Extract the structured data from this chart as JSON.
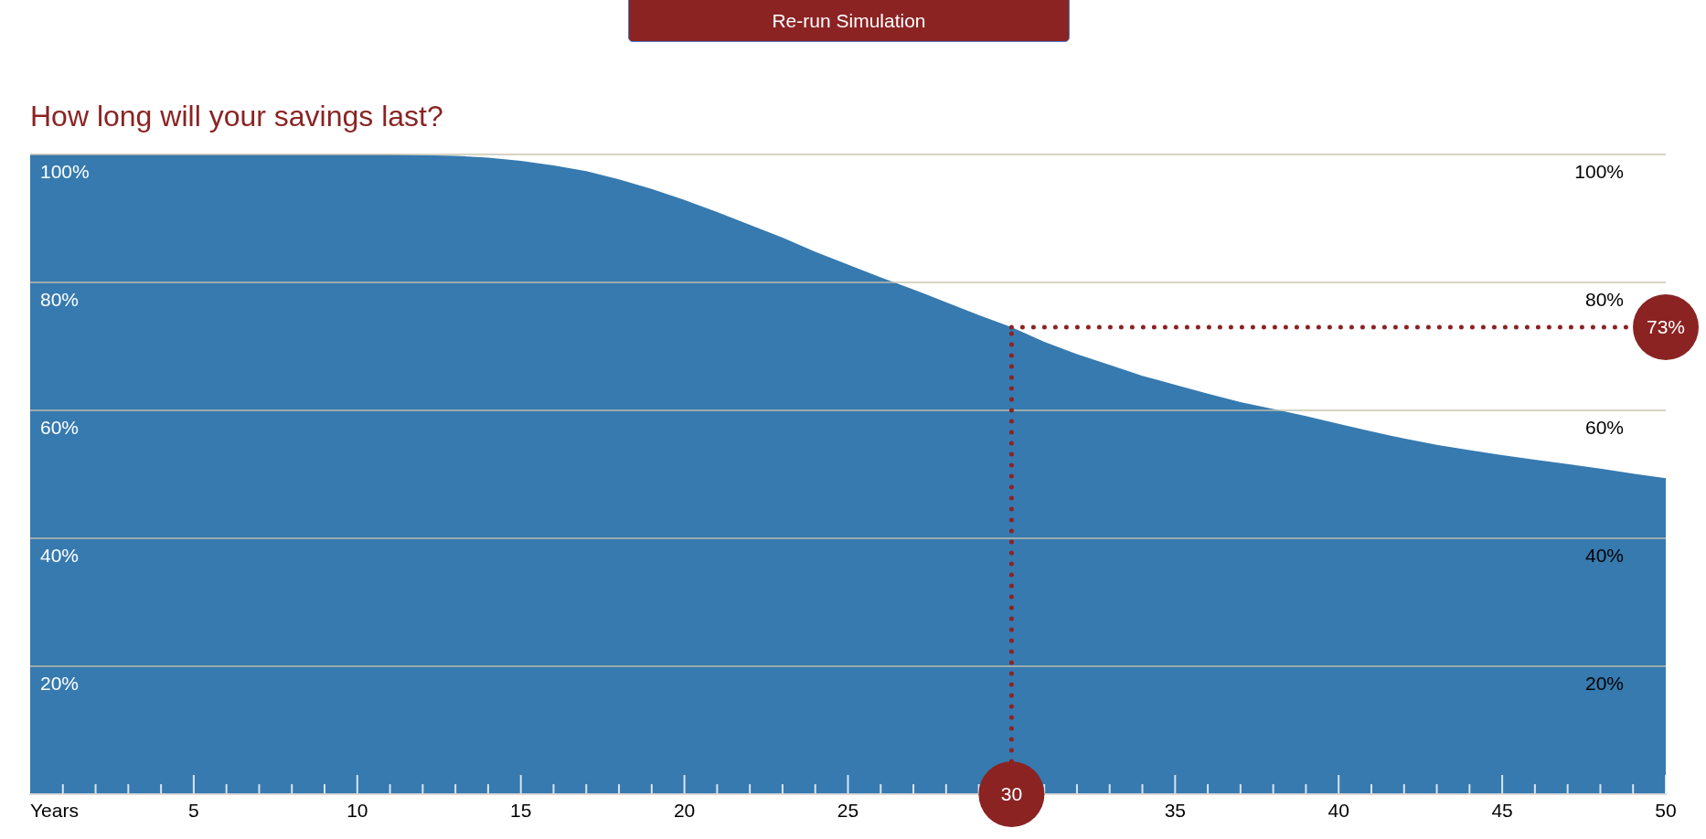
{
  "chart_data": {
    "type": "area",
    "title": "How long will your savings last?",
    "xlabel": "Years",
    "annotations": [
      "Re-run Simulation"
    ],
    "x": [
      0,
      11,
      12,
      13,
      14,
      15,
      16,
      17,
      18,
      19,
      20,
      21,
      22,
      23,
      24,
      25,
      26,
      27,
      28,
      29,
      30,
      31,
      32,
      33,
      34,
      35,
      36,
      37,
      38,
      39,
      40,
      41,
      42,
      43,
      44,
      45,
      46,
      47,
      48,
      49,
      50
    ],
    "series": [
      {
        "color": "#367aaf",
        "values": [
          100,
          100,
          99.9,
          99.8,
          99.5,
          99.0,
          98.3,
          97.4,
          96.1,
          94.6,
          92.9,
          91.0,
          89.0,
          87.0,
          84.8,
          82.8,
          80.8,
          78.9,
          76.9,
          74.9,
          73.0,
          70.7,
          68.8,
          67.1,
          65.4,
          64.0,
          62.6,
          61.3,
          60.2,
          59.1,
          57.9,
          56.7,
          55.6,
          54.6,
          53.8,
          53.0,
          52.3,
          51.6,
          50.9,
          50.1,
          49.4
        ]
      }
    ],
    "xlim": [
      0,
      50
    ],
    "xticks": [
      {
        "value": 1,
        "label": null
      },
      {
        "value": 2,
        "label": null
      },
      {
        "value": 3,
        "label": null
      },
      {
        "value": 4,
        "label": null
      },
      5,
      {
        "value": 6,
        "label": null
      },
      {
        "value": 7,
        "label": null
      },
      {
        "value": 8,
        "label": null
      },
      {
        "value": 9,
        "label": null
      },
      10,
      {
        "value": 11,
        "label": null
      },
      {
        "value": 12,
        "label": null
      },
      {
        "value": 13,
        "label": null
      },
      {
        "value": 14,
        "label": null
      },
      15,
      {
        "value": 16,
        "label": null
      },
      {
        "value": 17,
        "label": null
      },
      {
        "value": 18,
        "label": null
      },
      {
        "value": 19,
        "label": null
      },
      20,
      {
        "value": 21,
        "label": null
      },
      {
        "value": 22,
        "label": null
      },
      {
        "value": 23,
        "label": null
      },
      {
        "value": 24,
        "label": null
      },
      25,
      {
        "value": 26,
        "label": null
      },
      {
        "value": 27,
        "label": null
      },
      {
        "value": 28,
        "label": null
      },
      {
        "value": 29,
        "label": null
      },
      {
        "value": 30,
        "label": null
      },
      {
        "value": 31,
        "label": null
      },
      {
        "value": 32,
        "label": null
      },
      {
        "value": 33,
        "label": null
      },
      {
        "value": 34,
        "label": null
      },
      35,
      {
        "value": 36,
        "label": null
      },
      {
        "value": 37,
        "label": null
      },
      {
        "value": 38,
        "label": null
      },
      {
        "value": 39,
        "label": null
      },
      40,
      {
        "value": 41,
        "label": null
      },
      {
        "value": 42,
        "label": null
      },
      {
        "value": 43,
        "label": null
      },
      {
        "value": 44,
        "label": null
      },
      45,
      {
        "value": 46,
        "label": null
      },
      {
        "value": 47,
        "label": null
      },
      {
        "value": 48,
        "label": null
      },
      {
        "value": 49,
        "label": null
      },
      50
    ],
    "ylim": [
      0,
      100
    ],
    "yticks": [
      {
        "value": 20,
        "label": "20%"
      },
      {
        "value": 40,
        "label": "40%"
      },
      {
        "value": 60,
        "label": "60%"
      },
      {
        "value": 80,
        "label": "80%"
      },
      {
        "value": 100,
        "label": "100%"
      }
    ],
    "y2lim": [
      0,
      100
    ],
    "y2ticks": [
      {
        "value": 20,
        "label": "20%"
      },
      {
        "value": 40,
        "label": "40%"
      },
      {
        "value": 60,
        "label": "60%"
      },
      {
        "value": 80,
        "label": "80%"
      },
      {
        "value": 100,
        "label": "100%"
      }
    ],
    "grid": "y",
    "ref_lines": [
      {
        "axis": "x",
        "value": 30,
        "label": "30",
        "color": "#8b2323",
        "line_style": "dotted"
      },
      {
        "axis": "y",
        "value": 73,
        "label": "73%",
        "color": "#8b2323",
        "line_style": "dotted"
      }
    ]
  }
}
